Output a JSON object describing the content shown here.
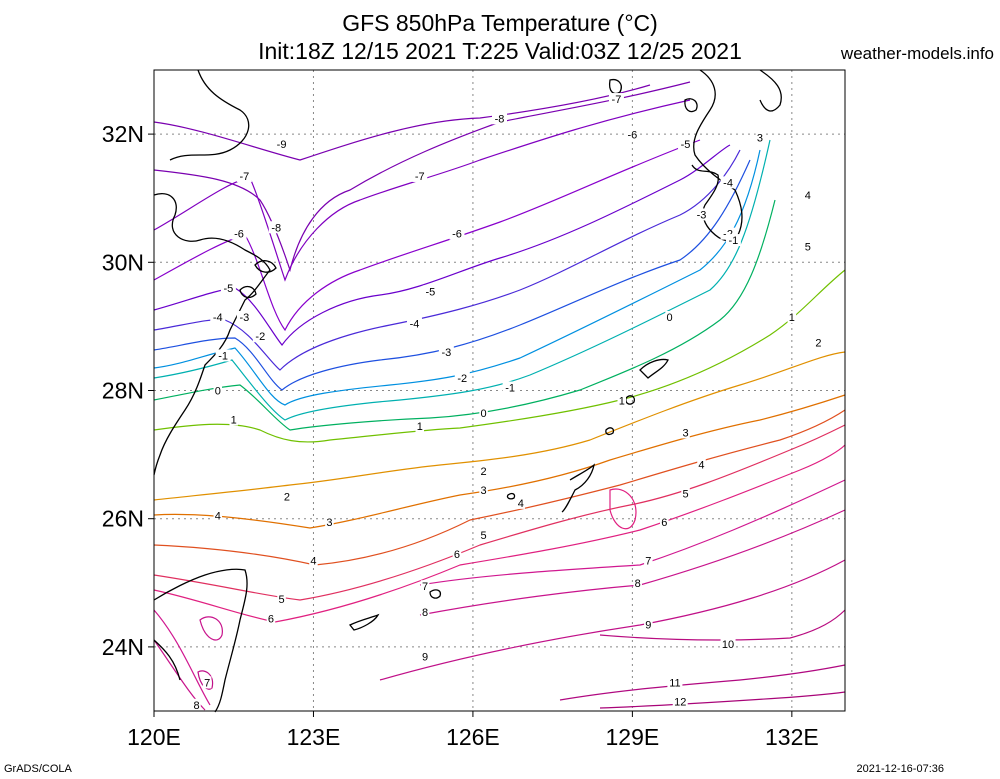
{
  "title_line1": "GFS 850hPa Temperature (°C)",
  "title_line2": "Init:18Z 12/15 2021 T:225 Valid:03Z 12/25 2021",
  "credit": "weather-models.info",
  "footer_left": "GrADS/COLA",
  "footer_right": "2021-12-16-07:36",
  "map": {
    "lon_range": [
      120,
      133
    ],
    "lat_range": [
      23,
      33
    ],
    "lon_ticks": [
      {
        "value": 120,
        "label": "120E"
      },
      {
        "value": 123,
        "label": "123E"
      },
      {
        "value": 126,
        "label": "126E"
      },
      {
        "value": 129,
        "label": "129E"
      },
      {
        "value": 132,
        "label": "132E"
      }
    ],
    "lat_ticks": [
      {
        "value": 24,
        "label": "24N"
      },
      {
        "value": 26,
        "label": "26N"
      },
      {
        "value": 28,
        "label": "28N"
      },
      {
        "value": 30,
        "label": "30N"
      },
      {
        "value": 32,
        "label": "32N"
      }
    ],
    "grid": true
  },
  "contour_colors": {
    "-9": "#7a00b0",
    "-8": "#7a00b0",
    "-7": "#8000c0",
    "-6": "#8800cc",
    "-5": "#6a00cc",
    "-4": "#4a2ad8",
    "-3": "#1e50e0",
    "-2": "#0090e0",
    "-1": "#00b0b0",
    "0": "#00b060",
    "1": "#70c000",
    "2": "#e09000",
    "3": "#e07000",
    "4": "#e05020",
    "5": "#e03060",
    "6": "#e02080",
    "7": "#d01890",
    "8": "#c8148c",
    "9": "#c01088",
    "10": "#b80c80",
    "11": "#b00880",
    "12": "#a80478"
  },
  "contour_labels": [
    {
      "t": "-9",
      "lon": 122.4,
      "lat": 31.8
    },
    {
      "t": "-8",
      "lon": 126.5,
      "lat": 32.2
    },
    {
      "t": "-7",
      "lon": 128.7,
      "lat": 32.5
    },
    {
      "t": "-7",
      "lon": 121.7,
      "lat": 31.3
    },
    {
      "t": "-7",
      "lon": 125.0,
      "lat": 31.3
    },
    {
      "t": "-8",
      "lon": 122.3,
      "lat": 30.5
    },
    {
      "t": "-6",
      "lon": 121.6,
      "lat": 30.4
    },
    {
      "t": "-6",
      "lon": 129.0,
      "lat": 31.95
    },
    {
      "t": "-6",
      "lon": 125.7,
      "lat": 30.4
    },
    {
      "t": "-5",
      "lon": 130.0,
      "lat": 31.8
    },
    {
      "t": "-5",
      "lon": 121.4,
      "lat": 29.55
    },
    {
      "t": "-5",
      "lon": 125.2,
      "lat": 29.5
    },
    {
      "t": "-4",
      "lon": 130.8,
      "lat": 31.2
    },
    {
      "t": "-4",
      "lon": 121.2,
      "lat": 29.1
    },
    {
      "t": "-4",
      "lon": 124.9,
      "lat": 29.0
    },
    {
      "t": "-3",
      "lon": 130.3,
      "lat": 30.7
    },
    {
      "t": "-3",
      "lon": 121.7,
      "lat": 29.1
    },
    {
      "t": "-3",
      "lon": 125.5,
      "lat": 28.55
    },
    {
      "t": "-2",
      "lon": 130.8,
      "lat": 30.4
    },
    {
      "t": "-2",
      "lon": 122.0,
      "lat": 28.8
    },
    {
      "t": "-2",
      "lon": 125.8,
      "lat": 28.15
    },
    {
      "t": "-1",
      "lon": 130.9,
      "lat": 30.3
    },
    {
      "t": "-1",
      "lon": 121.3,
      "lat": 28.5
    },
    {
      "t": "-1",
      "lon": 126.7,
      "lat": 28.0
    },
    {
      "t": "0",
      "lon": 129.7,
      "lat": 29.1
    },
    {
      "t": "0",
      "lon": 121.2,
      "lat": 27.95
    },
    {
      "t": "0",
      "lon": 126.2,
      "lat": 27.6
    },
    {
      "t": "1",
      "lon": 132.0,
      "lat": 29.1
    },
    {
      "t": "1",
      "lon": 121.5,
      "lat": 27.5
    },
    {
      "t": "1",
      "lon": 125.0,
      "lat": 27.4
    },
    {
      "t": "1",
      "lon": 128.8,
      "lat": 27.8
    },
    {
      "t": "2",
      "lon": 132.5,
      "lat": 28.7
    },
    {
      "t": "2",
      "lon": 122.5,
      "lat": 26.3
    },
    {
      "t": "2",
      "lon": 126.2,
      "lat": 26.7
    },
    {
      "t": "3",
      "lon": 131.4,
      "lat": 31.9
    },
    {
      "t": "3",
      "lon": 123.3,
      "lat": 25.9
    },
    {
      "t": "3",
      "lon": 126.2,
      "lat": 26.4
    },
    {
      "t": "3",
      "lon": 130.0,
      "lat": 27.3
    },
    {
      "t": "4",
      "lon": 132.3,
      "lat": 31.0
    },
    {
      "t": "4",
      "lon": 121.2,
      "lat": 26.0
    },
    {
      "t": "4",
      "lon": 123.0,
      "lat": 25.3
    },
    {
      "t": "4",
      "lon": 126.9,
      "lat": 26.2
    },
    {
      "t": "4",
      "lon": 130.3,
      "lat": 26.8
    },
    {
      "t": "5",
      "lon": 132.3,
      "lat": 30.2
    },
    {
      "t": "5",
      "lon": 122.4,
      "lat": 24.7
    },
    {
      "t": "5",
      "lon": 126.2,
      "lat": 25.7
    },
    {
      "t": "5",
      "lon": 130.0,
      "lat": 26.35
    },
    {
      "t": "6",
      "lon": 122.2,
      "lat": 24.4
    },
    {
      "t": "6",
      "lon": 125.7,
      "lat": 25.4
    },
    {
      "t": "6",
      "lon": 129.6,
      "lat": 25.9
    },
    {
      "t": "7",
      "lon": 121.0,
      "lat": 23.4
    },
    {
      "t": "7",
      "lon": 125.1,
      "lat": 24.9
    },
    {
      "t": "7",
      "lon": 129.3,
      "lat": 25.3
    },
    {
      "t": "8",
      "lon": 120.8,
      "lat": 23.05
    },
    {
      "t": "8",
      "lon": 125.1,
      "lat": 24.5
    },
    {
      "t": "8",
      "lon": 129.1,
      "lat": 24.95
    },
    {
      "t": "9",
      "lon": 125.1,
      "lat": 23.8
    },
    {
      "t": "9",
      "lon": 129.3,
      "lat": 24.3
    },
    {
      "t": "10",
      "lon": 130.8,
      "lat": 24.0
    },
    {
      "t": "11",
      "lon": 129.8,
      "lat": 23.4
    },
    {
      "t": "12",
      "lon": 129.9,
      "lat": 23.1
    }
  ]
}
